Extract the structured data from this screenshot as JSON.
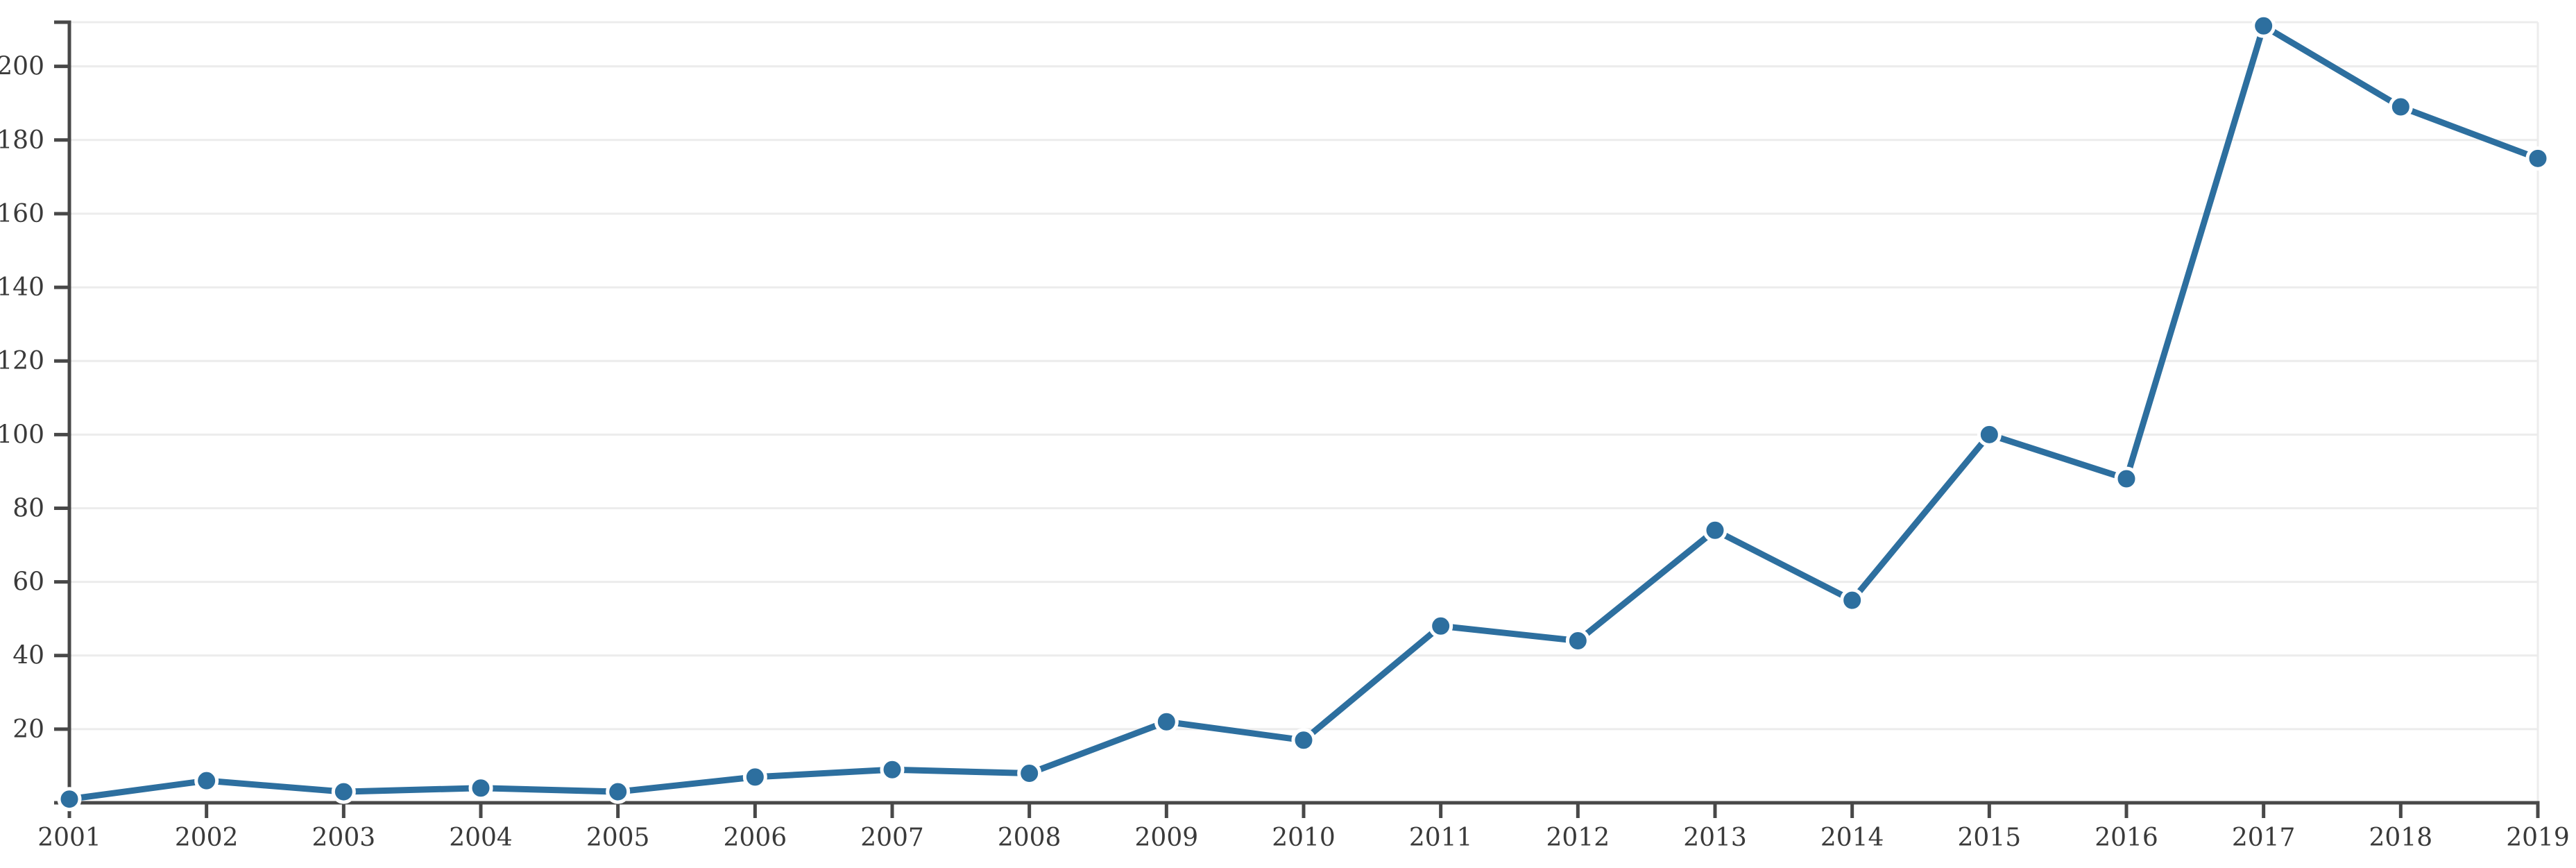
{
  "chart_data": {
    "type": "line",
    "title": "",
    "subtitle": "",
    "xlabel": "",
    "ylabel": "",
    "legend": "none",
    "grid": "horizontal",
    "marker": "circle",
    "x": [
      2001,
      2002,
      2003,
      2004,
      2005,
      2006,
      2007,
      2008,
      2009,
      2010,
      2011,
      2012,
      2013,
      2014,
      2015,
      2016,
      2017,
      2018,
      2019
    ],
    "series": [
      {
        "name": "value",
        "values": [
          1,
          6,
          3,
          4,
          3,
          7,
          9,
          8,
          22,
          17,
          48,
          44,
          74,
          55,
          100,
          88,
          211,
          189,
          175
        ]
      }
    ],
    "xticks": [
      2001,
      2002,
      2003,
      2004,
      2005,
      2006,
      2007,
      2008,
      2009,
      2010,
      2011,
      2012,
      2013,
      2014,
      2015,
      2016,
      2017,
      2018,
      2019
    ],
    "yticks": [
      20,
      40,
      60,
      80,
      100,
      120,
      140,
      160,
      180,
      200
    ],
    "xlim": [
      2001,
      2019
    ],
    "ylim": [
      0,
      212
    ],
    "colors": {
      "line": "#2d6f9f",
      "marker_fill": "#2d6f9f",
      "marker_halo": "#ffffff",
      "axis": "#484848",
      "tick_label": "#3a3a3a",
      "gridline": "#ececec",
      "background": "#ffffff"
    }
  }
}
